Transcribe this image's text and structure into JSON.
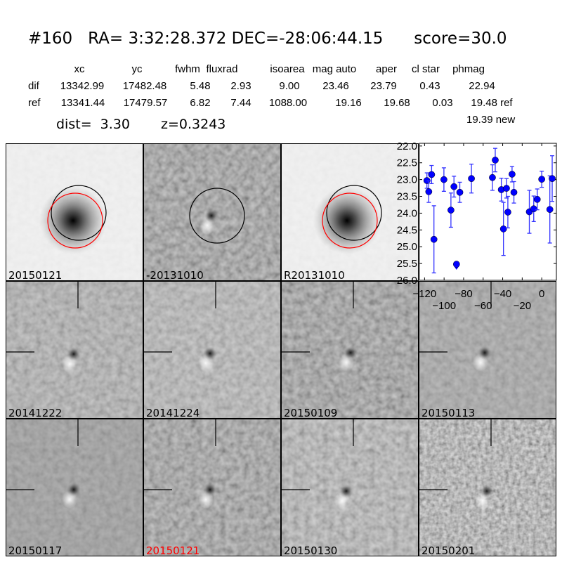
{
  "header": {
    "title": "#160   RA= 3:32:28.372 DEC=-28:06:44.15      score=30.0",
    "columns": [
      "xc",
      "yc",
      "fwhm",
      "fluxrad",
      "isoarea",
      "mag auto",
      "aper",
      "cl star",
      "phmag"
    ],
    "rows": [
      {
        "label": "dif",
        "values": [
          "13342.99",
          "17482.48",
          "5.48",
          "2.93",
          "9.00",
          "23.46",
          "23.79",
          "0.43",
          "22.94"
        ]
      },
      {
        "label": "ref",
        "values": [
          "13341.44",
          "17479.57",
          "6.82",
          "7.44",
          "1088.00",
          "19.16",
          "19.68",
          "0.03",
          "19.48 ref"
        ]
      }
    ],
    "new_phmag": "19.39 new",
    "dist": "dist=  3.30",
    "z": "z=0.3243"
  },
  "panels": [
    {
      "label": "20150121",
      "label_color": "#000000"
    },
    {
      "label": "-20131010",
      "label_color": "#000000"
    },
    {
      "label": "R20131010",
      "label_color": "#000000"
    },
    {
      "label": "20141222",
      "label_color": "#000000"
    },
    {
      "label": "20141224",
      "label_color": "#000000"
    },
    {
      "label": "20150109",
      "label_color": "#000000"
    },
    {
      "label": "20150113",
      "label_color": "#000000"
    },
    {
      "label": "20150117",
      "label_color": "#000000"
    },
    {
      "label": "20150121",
      "label_color": "#ff0000"
    },
    {
      "label": "20150130",
      "label_color": "#000000"
    },
    {
      "label": "20150201",
      "label_color": "#000000"
    }
  ],
  "colors": {
    "circle_red": "#ff0000",
    "circle_black": "#000000",
    "points": "#0000ff",
    "errorbars": "#3333ff"
  },
  "chart_data": {
    "type": "scatter",
    "title": "",
    "xlabel": "",
    "ylabel": "",
    "xlim": [
      -125.3,
      15.0
    ],
    "ylim": [
      26.0,
      21.92
    ],
    "y_inverted": true,
    "grid": false,
    "xticks": [
      -120,
      -100,
      -80,
      -60,
      -40,
      -20,
      0
    ],
    "xtick_labels": [
      "−120",
      "−100",
      "−80",
      "−60",
      "−40",
      "−20",
      "0"
    ],
    "yticks": [
      22.0,
      22.5,
      23.0,
      23.5,
      24.0,
      24.5,
      25.0,
      25.5,
      26.0
    ],
    "ytick_labels": [
      "22.0",
      "22.5",
      "23.0",
      "23.5",
      "24.0",
      "24.5",
      "25.0",
      "25.5",
      "26.0"
    ],
    "points": [
      {
        "x": -117.6,
        "y": 23.03,
        "err": 0.23
      },
      {
        "x": -115.7,
        "y": 23.36,
        "err": 0.32
      },
      {
        "x": -112.8,
        "y": 22.85,
        "err": 0.27
      },
      {
        "x": -110.4,
        "y": 24.78,
        "err": 1.0
      },
      {
        "x": -100.2,
        "y": 23.0,
        "err": 0.35
      },
      {
        "x": -93.0,
        "y": 23.91,
        "err": 0.51
      },
      {
        "x": -89.9,
        "y": 23.21,
        "err": 0.31
      },
      {
        "x": -83.9,
        "y": 23.38,
        "err": 0.3
      },
      {
        "x": -72.0,
        "y": 22.97,
        "err": 0.43
      },
      {
        "x": -50.5,
        "y": 22.94,
        "err": 0.38
      },
      {
        "x": -47.6,
        "y": 22.42,
        "err": 0.35
      },
      {
        "x": -41.4,
        "y": 23.3,
        "err": 0.34
      },
      {
        "x": -39.2,
        "y": 24.47,
        "err": 0.79
      },
      {
        "x": -36.1,
        "y": 23.26,
        "err": 0.29
      },
      {
        "x": -34.7,
        "y": 23.97,
        "err": 0.47
      },
      {
        "x": -30.4,
        "y": 22.84,
        "err": 0.23
      },
      {
        "x": -28.5,
        "y": 23.38,
        "err": 0.32
      },
      {
        "x": -12.7,
        "y": 23.96,
        "err": 0.64
      },
      {
        "x": -8.2,
        "y": 23.87,
        "err": 0.38
      },
      {
        "x": -4.6,
        "y": 23.59,
        "err": 0.31
      },
      {
        "x": 0.0,
        "y": 22.99,
        "err": 0.24
      },
      {
        "x": 8.3,
        "y": 23.89,
        "err": 1.0
      },
      {
        "x": 10.7,
        "y": 22.97,
        "err": 0.68
      }
    ],
    "upper_limits": [
      {
        "x": -87.3,
        "y": 25.52
      }
    ]
  }
}
